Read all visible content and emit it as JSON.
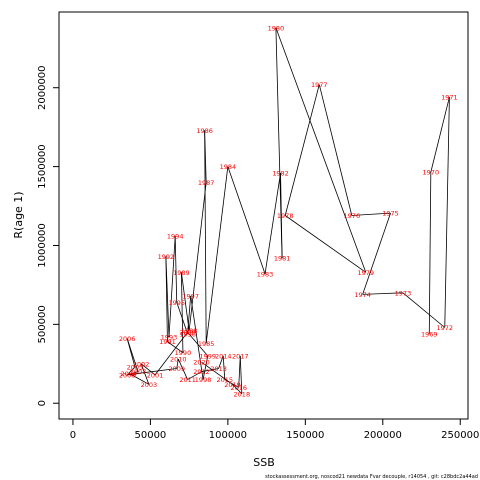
{
  "chart_data": {
    "type": "line",
    "xlabel": "SSB",
    "ylabel": "R(age 1)",
    "xlim": [
      -9000,
      255000
    ],
    "ylim": [
      -100000,
      2480000
    ],
    "x_ticks": [
      {
        "value": 0,
        "label": "0"
      },
      {
        "value": 50000,
        "label": "50000"
      },
      {
        "value": 100000,
        "label": "100000"
      },
      {
        "value": 150000,
        "label": "150000"
      },
      {
        "value": 200000,
        "label": "200000"
      },
      {
        "value": 250000,
        "label": "250000"
      }
    ],
    "y_ticks": [
      {
        "value": 0,
        "label": "0"
      },
      {
        "value": 500000,
        "label": "500000"
      },
      {
        "value": 1000000,
        "label": "1000000"
      },
      {
        "value": 1500000,
        "label": "1500000"
      },
      {
        "value": 2000000,
        "label": "2000000"
      }
    ],
    "line_color": "#000000",
    "label_color": "#ff0000",
    "points": [
      {
        "year": "1969",
        "x": 230000,
        "y": 440000
      },
      {
        "year": "1970",
        "x": 231000,
        "y": 1465000
      },
      {
        "year": "1971",
        "x": 243000,
        "y": 1940000
      },
      {
        "year": "1972",
        "x": 240000,
        "y": 480000
      },
      {
        "year": "1973",
        "x": 213000,
        "y": 700000
      },
      {
        "year": "1974",
        "x": 187000,
        "y": 690000
      },
      {
        "year": "1975",
        "x": 205000,
        "y": 1205000
      },
      {
        "year": "1976",
        "x": 180000,
        "y": 1190000
      },
      {
        "year": "1977",
        "x": 159000,
        "y": 2020000
      },
      {
        "year": "1978",
        "x": 137000,
        "y": 1190000
      },
      {
        "year": "1979",
        "x": 189000,
        "y": 830000
      },
      {
        "year": "1980",
        "x": 131000,
        "y": 2380000
      },
      {
        "year": "1981",
        "x": 135000,
        "y": 920000
      },
      {
        "year": "1982",
        "x": 134000,
        "y": 1460000
      },
      {
        "year": "1983",
        "x": 124000,
        "y": 820000
      },
      {
        "year": "1984",
        "x": 100000,
        "y": 1500000
      },
      {
        "year": "1985",
        "x": 86000,
        "y": 380000
      },
      {
        "year": "1986",
        "x": 85000,
        "y": 1730000
      },
      {
        "year": "1987",
        "x": 86000,
        "y": 1400000
      },
      {
        "year": "1988",
        "x": 75000,
        "y": 460000
      },
      {
        "year": "1989",
        "x": 70000,
        "y": 830000
      },
      {
        "year": "1990",
        "x": 71000,
        "y": 320000
      },
      {
        "year": "1991",
        "x": 61000,
        "y": 390000
      },
      {
        "year": "1992",
        "x": 60000,
        "y": 930000
      },
      {
        "year": "1993",
        "x": 62000,
        "y": 420000
      },
      {
        "year": "1994",
        "x": 66000,
        "y": 1060000
      },
      {
        "year": "1995",
        "x": 67000,
        "y": 640000
      },
      {
        "year": "1996",
        "x": 74000,
        "y": 440000
      },
      {
        "year": "1997",
        "x": 76000,
        "y": 680000
      },
      {
        "year": "1998",
        "x": 84000,
        "y": 150000
      },
      {
        "year": "1999",
        "x": 87000,
        "y": 300000
      },
      {
        "year": "2000",
        "x": 74000,
        "y": 450000
      },
      {
        "year": "2001",
        "x": 53000,
        "y": 180000
      },
      {
        "year": "2002",
        "x": 44000,
        "y": 250000
      },
      {
        "year": "2003",
        "x": 49000,
        "y": 120000
      },
      {
        "year": "2004",
        "x": 36000,
        "y": 190000
      },
      {
        "year": "2005",
        "x": 40000,
        "y": 230000
      },
      {
        "year": "2006",
        "x": 35000,
        "y": 410000
      },
      {
        "year": "2007",
        "x": 42000,
        "y": 200000
      },
      {
        "year": "2008",
        "x": 35000,
        "y": 180000
      },
      {
        "year": "2009",
        "x": 67000,
        "y": 220000
      },
      {
        "year": "2010",
        "x": 68000,
        "y": 280000
      },
      {
        "year": "2011",
        "x": 74000,
        "y": 150000
      },
      {
        "year": "2012",
        "x": 83000,
        "y": 200000
      },
      {
        "year": "2013",
        "x": 94000,
        "y": 220000
      },
      {
        "year": "2014",
        "x": 97000,
        "y": 300000
      },
      {
        "year": "2015",
        "x": 98000,
        "y": 150000
      },
      {
        "year": "2016",
        "x": 107000,
        "y": 100000
      },
      {
        "year": "2017",
        "x": 108000,
        "y": 300000
      },
      {
        "year": "2018",
        "x": 109000,
        "y": 60000
      },
      {
        "year": "2019",
        "x": 103000,
        "y": 120000
      },
      {
        "year": "2020",
        "x": 83000,
        "y": 260000
      }
    ]
  },
  "footer": "stockassessment.org, noscod21 newdata Fvar decouple, r14054 , git: c28bdc2a44ad"
}
